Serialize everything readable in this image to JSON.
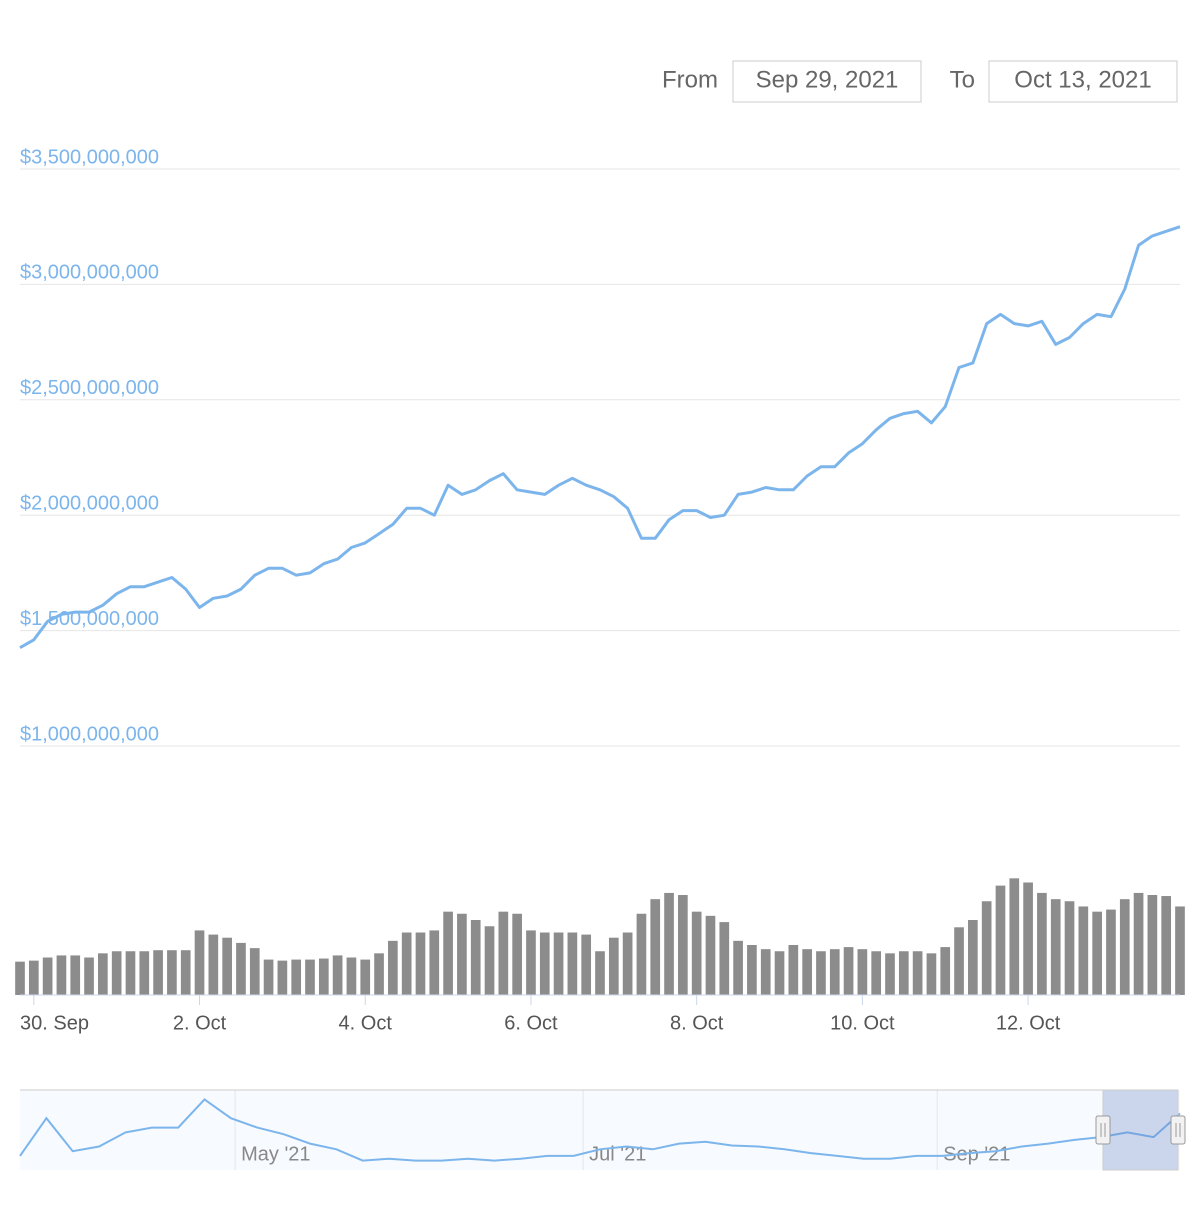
{
  "range_selector": {
    "from_label": "From",
    "from_value": "Sep 29, 2021",
    "to_label": "To",
    "to_value": "Oct 13, 2021"
  },
  "chart_data": {
    "type": "line",
    "color": "#7cb5ec",
    "grid": true,
    "ylim": [
      1000000000,
      3500000000
    ],
    "yticks": [
      {
        "value": 1000000000,
        "label": "$1,000,000,000"
      },
      {
        "value": 1500000000,
        "label": "$1,500,000,000"
      },
      {
        "value": 2000000000,
        "label": "$2,000,000,000"
      },
      {
        "value": 2500000000,
        "label": "$2,500,000,000"
      },
      {
        "value": 3000000000,
        "label": "$3,000,000,000"
      },
      {
        "value": 3500000000,
        "label": "$3,500,000,000"
      }
    ],
    "xlim": [
      0,
      84
    ],
    "xticks": [
      {
        "value": 1,
        "label": "30. Sep"
      },
      {
        "value": 13,
        "label": "2. Oct"
      },
      {
        "value": 25,
        "label": "4. Oct"
      },
      {
        "value": 37,
        "label": "6. Oct"
      },
      {
        "value": 49,
        "label": "8. Oct"
      },
      {
        "value": 61,
        "label": "10. Oct"
      },
      {
        "value": 73,
        "label": "12. Oct"
      }
    ],
    "values": [
      1426000000,
      1460000000,
      1540000000,
      1570000000,
      1580000000,
      1580000000,
      1610000000,
      1660000000,
      1690000000,
      1690000000,
      1710000000,
      1730000000,
      1680000000,
      1600000000,
      1640000000,
      1650000000,
      1680000000,
      1740000000,
      1770000000,
      1770000000,
      1740000000,
      1750000000,
      1790000000,
      1810000000,
      1860000000,
      1880000000,
      1920000000,
      1960000000,
      2030000000,
      2030000000,
      2000000000,
      2130000000,
      2090000000,
      2110000000,
      2150000000,
      2180000000,
      2110000000,
      2100000000,
      2090000000,
      2130000000,
      2160000000,
      2130000000,
      2110000000,
      2080000000,
      2030000000,
      1900000000,
      1900000000,
      1980000000,
      2020000000,
      2020000000,
      1990000000,
      2000000000,
      2090000000,
      2100000000,
      2120000000,
      2110000000,
      2110000000,
      2170000000,
      2210000000,
      2210000000,
      2270000000,
      2310000000,
      2370000000,
      2420000000,
      2440000000,
      2450000000,
      2400000000,
      2470000000,
      2640000000,
      2660000000,
      2830000000,
      2870000000,
      2830000000,
      2820000000,
      2840000000,
      2740000000,
      2770000000,
      2830000000,
      2870000000,
      2860000000,
      2980000000,
      3170000000,
      3210000000,
      3230000000,
      3250000000
    ],
    "volume": {
      "color": "#8c8c8c",
      "ylim": [
        0,
        120
      ],
      "values": [
        32,
        33,
        36,
        38,
        38,
        36,
        40,
        42,
        42,
        42,
        43,
        43,
        43,
        62,
        58,
        55,
        50,
        45,
        34,
        33,
        34,
        34,
        35,
        38,
        36,
        34,
        40,
        52,
        60,
        60,
        62,
        80,
        78,
        72,
        66,
        80,
        78,
        62,
        60,
        60,
        60,
        58,
        42,
        55,
        60,
        78,
        92,
        98,
        96,
        80,
        76,
        70,
        52,
        48,
        44,
        42,
        48,
        44,
        42,
        44,
        46,
        44,
        42,
        40,
        42,
        42,
        40,
        46,
        65,
        72,
        90,
        105,
        112,
        108,
        98,
        92,
        90,
        85,
        80,
        82,
        92,
        98,
        96,
        95,
        85
      ]
    },
    "navigator": {
      "color": "#7cb5ec",
      "ylim": [
        0,
        85
      ],
      "xlim": [
        0,
        44
      ],
      "xticks": [
        {
          "value": 8.16,
          "label": "May '21"
        },
        {
          "value": 21.36,
          "label": "Jul '21"
        },
        {
          "value": 34.79,
          "label": "Sep '21"
        }
      ],
      "values": [
        15,
        55,
        20,
        25,
        40,
        45,
        45,
        75,
        55,
        45,
        38,
        28,
        22,
        10,
        12,
        10,
        10,
        12,
        10,
        12,
        15,
        15,
        22,
        25,
        22,
        28,
        30,
        26,
        25,
        22,
        18,
        15,
        12,
        12,
        15,
        15,
        18,
        20,
        25,
        28,
        32,
        35,
        40,
        35,
        60
      ]
    }
  }
}
